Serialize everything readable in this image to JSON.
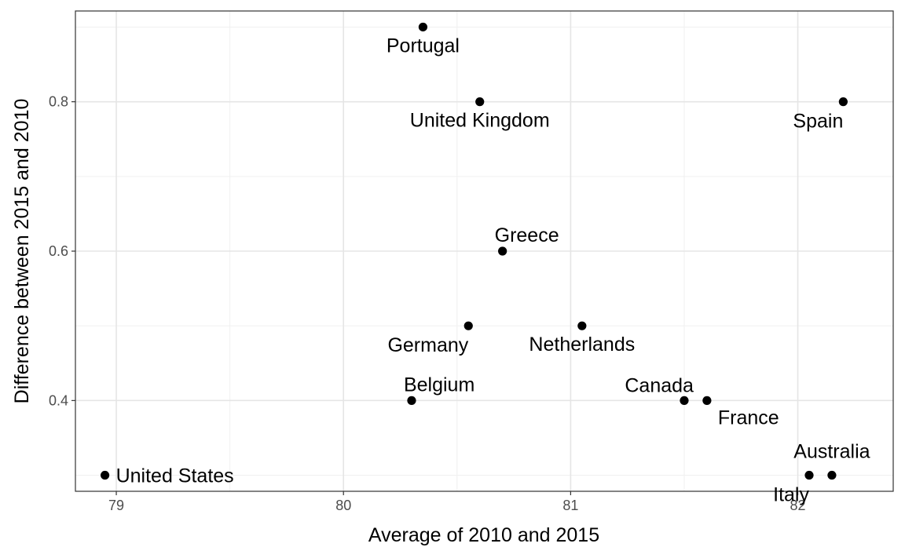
{
  "chart_data": {
    "type": "scatter",
    "title": "",
    "xlabel": "Average of 2010 and 2015",
    "ylabel": "Difference between 2015 and 2010",
    "xlim": [
      78.82,
      82.42
    ],
    "ylim": [
      0.2785,
      0.9215
    ],
    "x_ticks": [
      79,
      80,
      81,
      82
    ],
    "x_tick_labels": [
      "79",
      "80",
      "81",
      "82"
    ],
    "y_ticks": [
      0.4,
      0.6,
      0.8
    ],
    "y_tick_labels": [
      "0.4",
      "0.6",
      "0.8"
    ],
    "grid": true,
    "legend": "none",
    "point_color": "#000000",
    "points": [
      {
        "label": "Portugal",
        "x": 80.35,
        "y": 0.9,
        "label_pos": "below"
      },
      {
        "label": "United Kingdom",
        "x": 80.6,
        "y": 0.8,
        "label_pos": "below"
      },
      {
        "label": "Spain",
        "x": 82.2,
        "y": 0.8,
        "label_pos": "below-left"
      },
      {
        "label": "Greece",
        "x": 80.7,
        "y": 0.6,
        "label_pos": "above-right"
      },
      {
        "label": "Germany",
        "x": 80.55,
        "y": 0.5,
        "label_pos": "below-left"
      },
      {
        "label": "Netherlands",
        "x": 81.05,
        "y": 0.5,
        "label_pos": "below"
      },
      {
        "label": "Belgium",
        "x": 80.3,
        "y": 0.4,
        "label_pos": "above-right"
      },
      {
        "label": "Canada",
        "x": 81.5,
        "y": 0.4,
        "label_pos": "above-left"
      },
      {
        "label": "France",
        "x": 81.6,
        "y": 0.4,
        "label_pos": "below-right"
      },
      {
        "label": "United States",
        "x": 78.95,
        "y": 0.3,
        "label_pos": "right"
      },
      {
        "label": "Italy",
        "x": 82.05,
        "y": 0.3,
        "label_pos": "below-left"
      },
      {
        "label": "Australia",
        "x": 82.15,
        "y": 0.3,
        "label_pos": "above"
      }
    ]
  }
}
